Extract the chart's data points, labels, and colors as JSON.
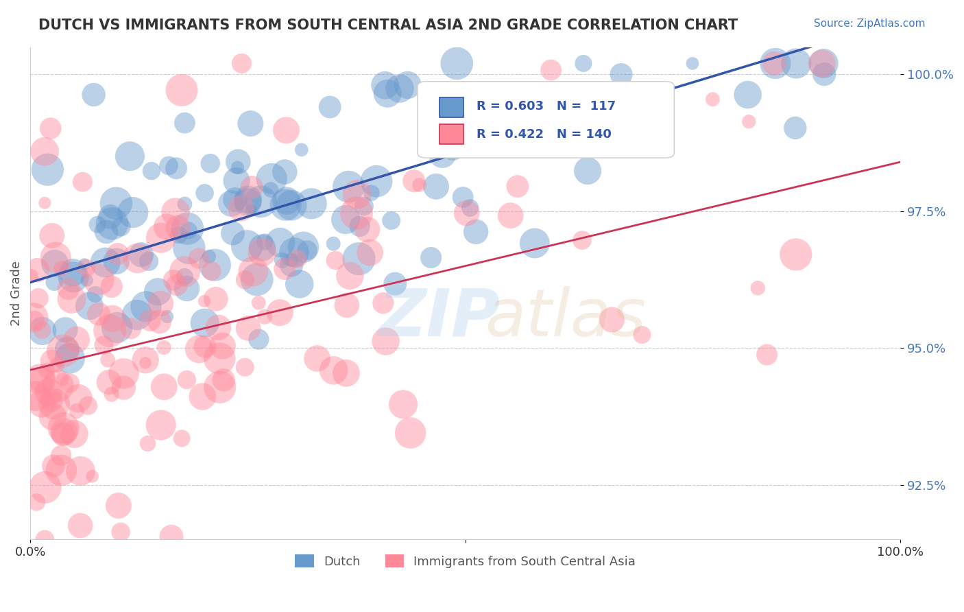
{
  "title": "DUTCH VS IMMIGRANTS FROM SOUTH CENTRAL ASIA 2ND GRADE CORRELATION CHART",
  "source_text": "Source: ZipAtlas.com",
  "ylabel": "2nd Grade",
  "xlim": [
    0.0,
    1.0
  ],
  "ylim": [
    0.915,
    1.005
  ],
  "yticks": [
    0.925,
    0.95,
    0.975,
    1.0
  ],
  "ytick_labels": [
    "92.5%",
    "95.0%",
    "97.5%",
    "100.0%"
  ],
  "xticks": [
    0.0,
    0.5,
    1.0
  ],
  "xtick_labels": [
    "0.0%",
    "",
    "100.0%"
  ],
  "legend_r1": "R = 0.603",
  "legend_n1": "N =  117",
  "legend_r2": "R = 0.422",
  "legend_n2": "N = 140",
  "legend_label1": "Dutch",
  "legend_label2": "Immigrants from South Central Asia",
  "blue_color": "#6699CC",
  "pink_color": "#FF8899",
  "trend_blue": "#3355AA",
  "trend_pink": "#CC3355",
  "background_color": "#FFFFFF",
  "title_color": "#333333",
  "seed": 42,
  "n_blue": 117,
  "n_pink": 140,
  "blue_slope": 0.048,
  "blue_intercept": 0.962,
  "pink_slope": 0.038,
  "pink_intercept": 0.946
}
